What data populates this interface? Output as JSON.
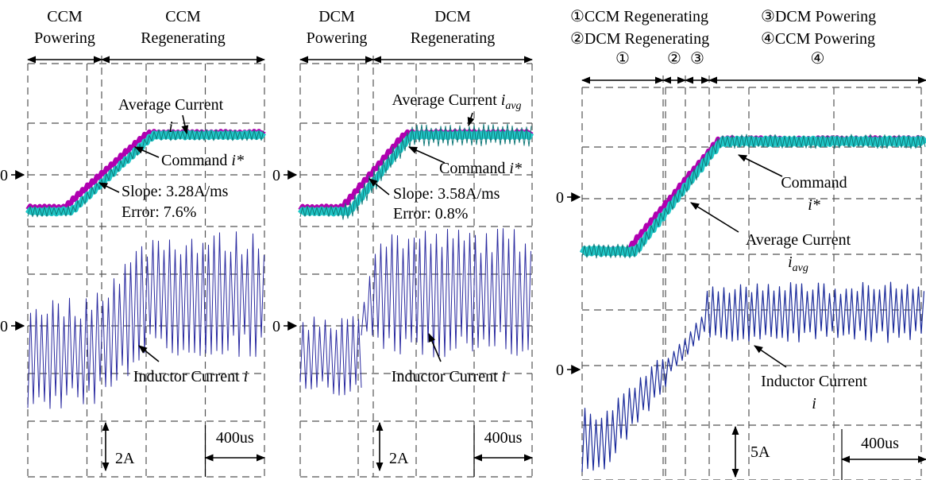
{
  "panels": [
    {
      "header_left": [
        "CCM",
        "Powering"
      ],
      "header_right": [
        "CCM",
        "Regenerating"
      ],
      "zero_labels": [
        "0",
        "0"
      ],
      "average": {
        "text": "Average Current",
        "var": "i"
      },
      "command": {
        "text": "Command",
        "var": "i*"
      },
      "slope": "Slope: 3.28A/ms",
      "error": "Error: 7.6%",
      "inductor": {
        "text": "Inductor Current",
        "var": "i"
      },
      "current_scale": "2A",
      "time_scale": "400us"
    },
    {
      "header_left": [
        "DCM",
        "Powering"
      ],
      "header_right": [
        "DCM",
        "Regenerating"
      ],
      "zero_labels": [
        "0",
        "0"
      ],
      "average": {
        "text": "Average Current",
        "var": "i",
        "sub": "avg"
      },
      "command": {
        "text": "Command",
        "var": "i*"
      },
      "slope": "Slope: 3.58A/ms",
      "error": "Error: 0.8%",
      "inductor": {
        "text": "Inductor Current",
        "var": "i"
      },
      "current_scale": "2A",
      "time_scale": "400us"
    },
    {
      "legend": [
        "①CCM Regenerating",
        "②DCM Regenerating",
        "③DCM Powering",
        "④CCM Powering"
      ],
      "phases": [
        "①",
        "②",
        "③",
        "④"
      ],
      "zero_labels": [
        "0",
        "0"
      ],
      "command": {
        "text": "Command",
        "var": "i*"
      },
      "average": {
        "text": "Average Current",
        "var": "i",
        "sub": "avg"
      },
      "inductor": {
        "text": "Inductor Current",
        "var": "i"
      },
      "current_scale": "5A",
      "time_scale": "400us"
    }
  ]
}
